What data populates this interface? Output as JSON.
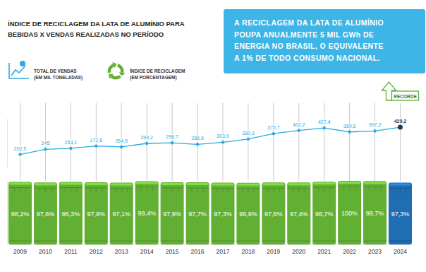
{
  "chart_data": [
    {
      "type": "line",
      "title": [
        "ÍNDICE DE RECICLAGEM DA LATA DE ALUMÍNIO PARA",
        "BEBIDAS X VENDAS REALIZADAS NO PERÍODO"
      ],
      "categories": [
        "2009",
        "2010",
        "2011",
        "2012",
        "2013",
        "2014",
        "2015",
        "2016",
        "2017",
        "2018",
        "2019",
        "2020",
        "2021",
        "2022",
        "2023",
        "2024"
      ],
      "series": [
        {
          "name": "TOTAL DE VENDAS (EM MIL TONELADAS)",
          "color": "#29aae1",
          "marker": "circle",
          "values": [
            202.5,
            245,
            253.1,
            272.8,
            264.9,
            294.2,
            298.7,
            286.6,
            303.9,
            330.3,
            375.7,
            402.2,
            422.4,
            389.8,
            397.2,
            429.2
          ],
          "value_labels": [
            "202,5",
            "245",
            "253,1",
            "272,8",
            "264,9",
            "294,2",
            "298,7",
            "286,6",
            "303,9",
            "330,3",
            "375,7",
            "402,2",
            "422,4",
            "389,8",
            "397,2",
            "429,2"
          ]
        }
      ],
      "ylim": [
        100,
        500
      ],
      "tick_labels": false,
      "grid": true,
      "data_labels": true,
      "legend": "top-left",
      "annotations": [
        {
          "text": [
            "A RECICLAGEM DA LATA DE ALUMÍNIO",
            "POUPA ANUALMENTE 5 MIL GWh DE",
            "ENERGIA NO BRASIL, O EQUIVALENTE",
            "A 1% DE TODO CONSUMO NACIONAL."
          ]
        },
        {
          "text": "RECORDE",
          "x": "2024"
        }
      ]
    },
    {
      "type": "bar",
      "categories": [
        "2009",
        "2010",
        "2011",
        "2012",
        "2013",
        "2014",
        "2015",
        "2016",
        "2017",
        "2018",
        "2019",
        "2020",
        "2021",
        "2022",
        "2023",
        "2024"
      ],
      "series": [
        {
          "name": "ÍNDICE DE RECICLAGEM (EM PORCENTAGEM)",
          "colors": [
            "#62b033",
            "#62b033",
            "#62b033",
            "#62b033",
            "#62b033",
            "#62b033",
            "#62b033",
            "#62b033",
            "#62b033",
            "#62b033",
            "#62b033",
            "#62b033",
            "#62b033",
            "#62b033",
            "#62b033",
            "#1f6db3"
          ],
          "values": [
            98.2,
            97.6,
            98.3,
            97.9,
            97.1,
            99.4,
            97.9,
            97.7,
            97.3,
            96.9,
            97.6,
            97.4,
            98.7,
            100,
            99.7,
            97.3
          ],
          "value_labels": [
            "98,2%",
            "97,6%",
            "98,3%",
            "97,9%",
            "97,1%",
            "99,4%",
            "97,9%",
            "97,7%",
            "97,3%",
            "96,9%",
            "97,6%",
            "97,4%",
            "98,7%",
            "100%",
            "99,7%",
            "97,3%"
          ]
        }
      ],
      "ylim": [
        0,
        100
      ],
      "tick_labels": "x",
      "data_labels": true,
      "legend": "top-left"
    }
  ]
}
